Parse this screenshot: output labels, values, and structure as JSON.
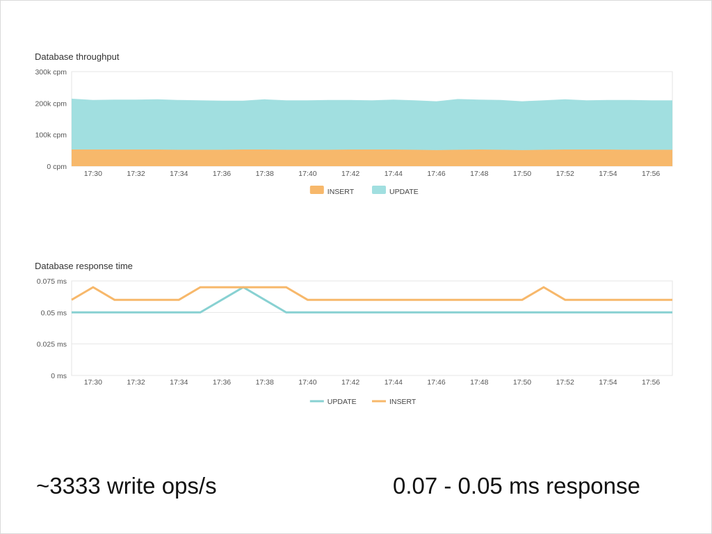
{
  "slide": {
    "caption_left": "~3333 write ops/s",
    "caption_right": "0.07 - 0.05 ms response"
  },
  "chart_data": [
    {
      "type": "area",
      "stacked": true,
      "title": "Database throughput",
      "x": [
        "17:29",
        "17:30",
        "17:31",
        "17:32",
        "17:33",
        "17:34",
        "17:35",
        "17:36",
        "17:37",
        "17:38",
        "17:39",
        "17:40",
        "17:41",
        "17:42",
        "17:43",
        "17:44",
        "17:45",
        "17:46",
        "17:47",
        "17:48",
        "17:49",
        "17:50",
        "17:51",
        "17:52",
        "17:53",
        "17:54",
        "17:55",
        "17:56",
        "17:57"
      ],
      "xticks": [
        "17:30",
        "17:32",
        "17:34",
        "17:36",
        "17:38",
        "17:40",
        "17:42",
        "17:44",
        "17:46",
        "17:48",
        "17:50",
        "17:52",
        "17:54",
        "17:56"
      ],
      "yticks": [
        "300k cpm",
        "200k cpm",
        "100k cpm",
        "0 cpm"
      ],
      "ylim": [
        0,
        300000
      ],
      "grid": true,
      "legend_position": "bottom",
      "series": [
        {
          "name": "INSERT",
          "color": "#f7b86b",
          "values": [
            53000,
            53000,
            53000,
            53000,
            53000,
            52000,
            52000,
            52000,
            53000,
            53000,
            52000,
            52000,
            52000,
            53000,
            53000,
            53000,
            52000,
            51000,
            52000,
            53000,
            52000,
            51000,
            52000,
            53000,
            53000,
            53000,
            52000,
            52000,
            52000
          ]
        },
        {
          "name": "UPDATE",
          "color": "#a1dfe0",
          "values": [
            160000,
            156000,
            157000,
            157000,
            158000,
            157000,
            156000,
            155000,
            154000,
            158000,
            156000,
            156000,
            157000,
            156000,
            155000,
            157000,
            156000,
            154000,
            160000,
            157000,
            157000,
            154000,
            156000,
            158000,
            155000,
            156000,
            157000,
            156000,
            156000
          ]
        }
      ]
    },
    {
      "type": "line",
      "title": "Database response time",
      "x": [
        "17:29",
        "17:30",
        "17:31",
        "17:32",
        "17:33",
        "17:34",
        "17:35",
        "17:36",
        "17:37",
        "17:38",
        "17:39",
        "17:40",
        "17:41",
        "17:42",
        "17:43",
        "17:44",
        "17:45",
        "17:46",
        "17:47",
        "17:48",
        "17:49",
        "17:50",
        "17:51",
        "17:52",
        "17:53",
        "17:54",
        "17:55",
        "17:56",
        "17:57"
      ],
      "xticks": [
        "17:30",
        "17:32",
        "17:34",
        "17:36",
        "17:38",
        "17:40",
        "17:42",
        "17:44",
        "17:46",
        "17:48",
        "17:50",
        "17:52",
        "17:54",
        "17:56"
      ],
      "yticks": [
        "0.075 ms",
        "0.05 ms",
        "0.025 ms",
        "0 ms"
      ],
      "ylim": [
        0,
        0.075
      ],
      "grid": true,
      "legend_position": "bottom",
      "series": [
        {
          "name": "UPDATE",
          "color": "#88d1d2",
          "values": [
            0.05,
            0.05,
            0.05,
            0.05,
            0.05,
            0.05,
            0.05,
            0.06,
            0.07,
            0.06,
            0.05,
            0.05,
            0.05,
            0.05,
            0.05,
            0.05,
            0.05,
            0.05,
            0.05,
            0.05,
            0.05,
            0.05,
            0.05,
            0.05,
            0.05,
            0.05,
            0.05,
            0.05,
            0.05
          ]
        },
        {
          "name": "INSERT",
          "color": "#f7b86b",
          "values": [
            0.06,
            0.07,
            0.06,
            0.06,
            0.06,
            0.06,
            0.07,
            0.07,
            0.07,
            0.07,
            0.07,
            0.06,
            0.06,
            0.06,
            0.06,
            0.06,
            0.06,
            0.06,
            0.06,
            0.06,
            0.06,
            0.06,
            0.07,
            0.06,
            0.06,
            0.06,
            0.06,
            0.06,
            0.06
          ]
        }
      ]
    }
  ]
}
